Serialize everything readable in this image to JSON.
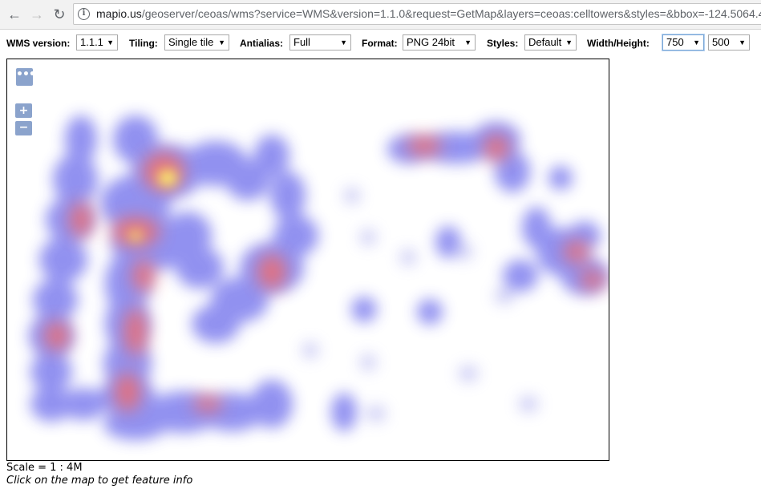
{
  "browser": {
    "url_host": "mapio.us",
    "url_rest": "/geoserver/ceoas/wms?service=WMS&version=1.1.0&request=GetMap&layers=ceoas:celltowers&styles=&bbox=-124.5064.4"
  },
  "toolbar": {
    "wms_version_label": "WMS version:",
    "wms_version_value": "1.1.1",
    "tiling_label": "Tiling:",
    "tiling_value": "Single tile",
    "antialias_label": "Antialias:",
    "antialias_value": "Full",
    "format_label": "Format:",
    "format_value": "PNG 24bit",
    "styles_label": "Styles:",
    "styles_value": "Default",
    "size_label": "Width/Height:",
    "width_value": "750",
    "height_value": "500"
  },
  "map": {
    "layer": "ceoas:celltowers",
    "colors": {
      "low": "#8c8cf0",
      "mid": "#f06a6a",
      "high": "#ffff66"
    },
    "controls": {
      "options_glyph": "•••",
      "zoom_in_glyph": "+",
      "zoom_out_glyph": "−"
    }
  },
  "footer": {
    "scale_text": "Scale = 1 : 4M",
    "hint_text": "Click on the map to get feature info"
  }
}
